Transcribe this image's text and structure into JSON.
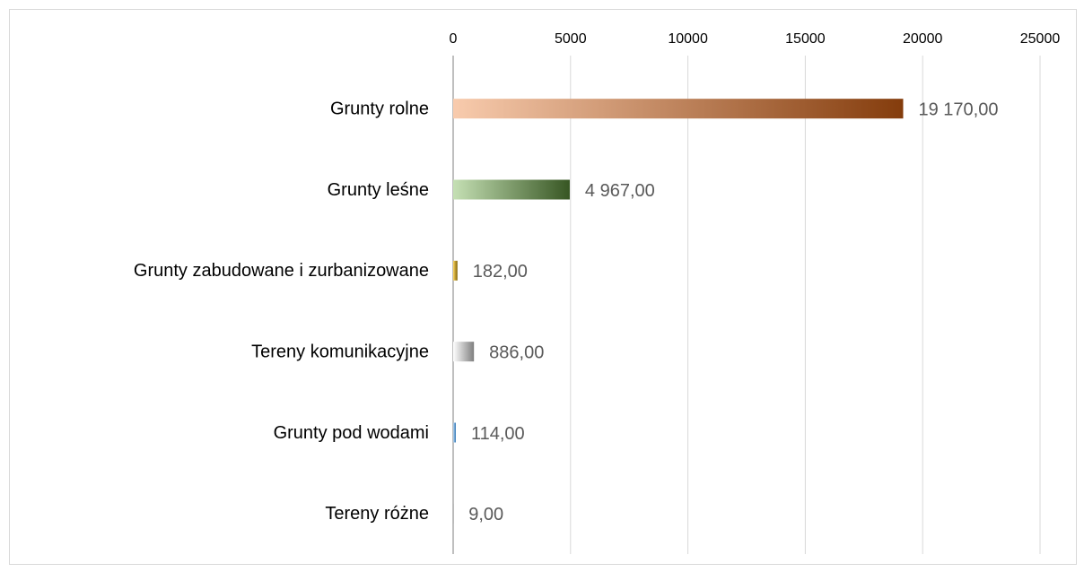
{
  "chart_data": {
    "type": "bar",
    "orientation": "horizontal",
    "categories": [
      "Grunty rolne",
      "Grunty leśne",
      "Grunty zabudowane i zurbanizowane",
      "Tereny komunikacyjne",
      "Grunty pod wodami",
      "Tereny różne"
    ],
    "values": [
      19170,
      4967,
      182,
      886,
      114,
      9
    ],
    "value_labels": [
      "19 170,00",
      "4 967,00",
      "182,00",
      "886,00",
      "114,00",
      "9,00"
    ],
    "colors": [
      [
        "#f8cbad",
        "#843c0c"
      ],
      [
        "#c5e0b4",
        "#375623"
      ],
      [
        "#ffd966",
        "#7f6000"
      ],
      [
        "#ffffff",
        "#7f7f7f"
      ],
      [
        "#bdd7ee",
        "#2e75b6"
      ],
      [
        "#f2f2f2",
        "#a6a6a6"
      ]
    ],
    "xlim": [
      0,
      25000
    ],
    "xticks": [
      0,
      5000,
      10000,
      15000,
      20000,
      25000
    ],
    "x_axis_position": "top",
    "grid": true
  }
}
